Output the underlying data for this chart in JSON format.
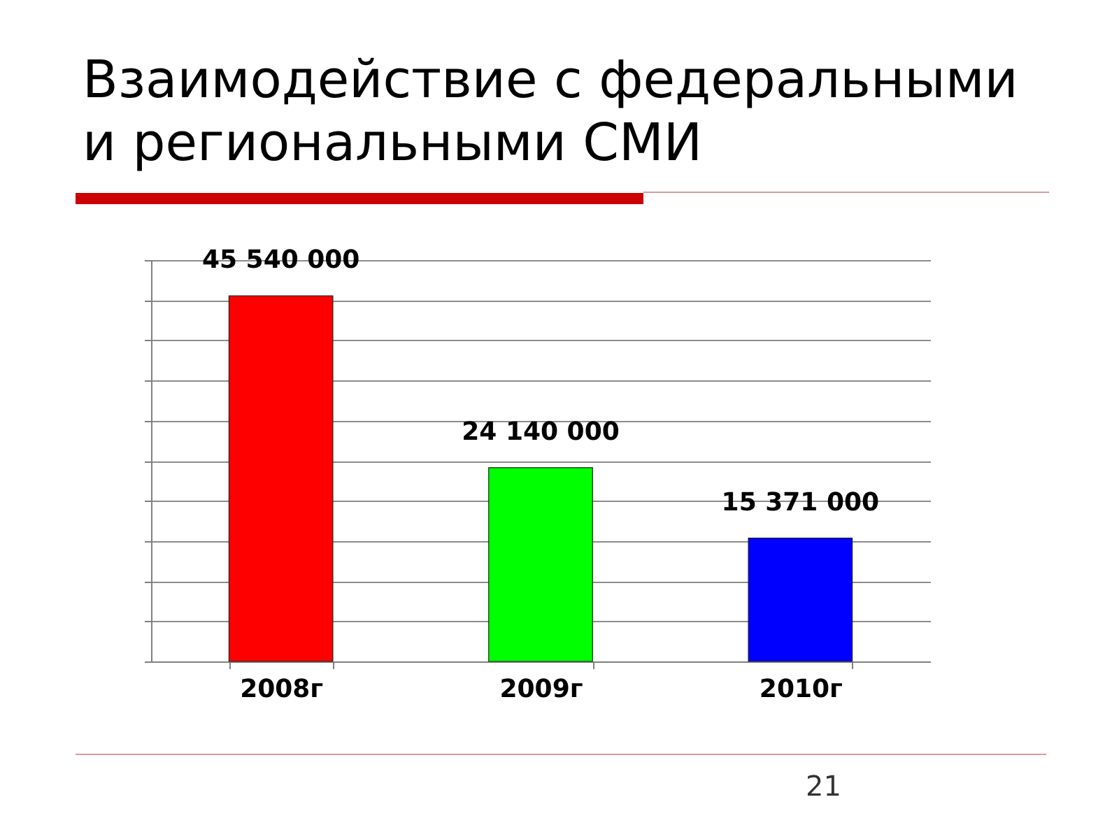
{
  "chart_data": {
    "type": "bar",
    "title": "Взаимодействие с федеральными и региональными СМИ",
    "categories": [
      "2008г",
      "2009г",
      "2010г"
    ],
    "values": [
      45540000,
      24140000,
      15371000
    ],
    "colors": [
      "#ff0000",
      "#00ff00",
      "#0000ff"
    ],
    "value_labels": [
      "45 540 000",
      "24 140 000",
      "15 371 000"
    ],
    "ylim": [
      0,
      50000000
    ],
    "yticks": [
      {
        "value": 0,
        "label": null
      },
      {
        "value": 5000000,
        "label": null
      },
      {
        "value": 10000000,
        "label": null
      },
      {
        "value": 15000000,
        "label": null
      },
      {
        "value": 20000000,
        "label": null
      },
      {
        "value": 25000000,
        "label": null
      },
      {
        "value": 30000000,
        "label": null
      },
      {
        "value": 35000000,
        "label": null
      },
      {
        "value": 40000000,
        "label": null
      },
      {
        "value": 45000000,
        "label": null
      },
      {
        "value": 50000000,
        "label": null
      }
    ],
    "grid": "y",
    "tick_labels": "x",
    "annotations": [
      "21"
    ]
  }
}
